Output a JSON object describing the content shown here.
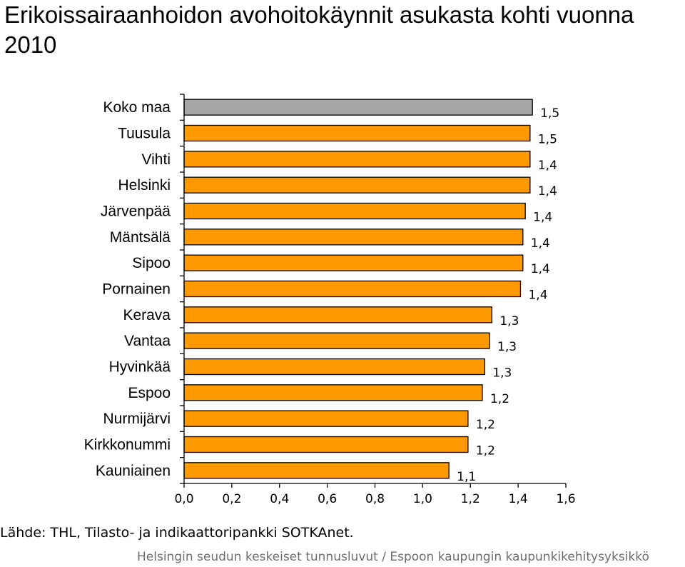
{
  "chart_data": {
    "type": "bar",
    "orientation": "horizontal",
    "title": "Erikoissairaanhoidon avohoitokäynnit asukasta kohti vuonna 2010",
    "xlim": [
      0,
      1.6
    ],
    "x_ticks": [
      "0,0",
      "0,2",
      "0,4",
      "0,6",
      "0,8",
      "1,0",
      "1,2",
      "1,4",
      "1,6"
    ],
    "categories": [
      "Koko maa",
      "Tuusula",
      "Vihti",
      "Helsinki",
      "Järvenpää",
      "Mäntsälä",
      "Sipoo",
      "Pornainen",
      "Kerava",
      "Vantaa",
      "Hyvinkää",
      "Espoo",
      "Nurmijärvi",
      "Kirkkonummi",
      "Kauniainen"
    ],
    "values": [
      1.46,
      1.45,
      1.45,
      1.45,
      1.43,
      1.42,
      1.42,
      1.41,
      1.29,
      1.28,
      1.26,
      1.25,
      1.19,
      1.19,
      1.11
    ],
    "labels": [
      "1,5",
      "1,5",
      "1,4",
      "1,4",
      "1,4",
      "1,4",
      "1,4",
      "1,4",
      "1,3",
      "1,3",
      "1,3",
      "1,2",
      "1,2",
      "1,2",
      "1,1"
    ],
    "colors": {
      "highlight": "#a6a6a6",
      "bar": "#ff9900",
      "edge": "#000000"
    },
    "highlight_index": 0,
    "grid": false
  },
  "source": "Lähde: THL, Tilasto- ja indikaattoripankki SOTKAnet.",
  "footer": "Helsingin seudun keskeiset tunnusluvut / Espoon kaupungin kaupunkikehitysyksikkö"
}
